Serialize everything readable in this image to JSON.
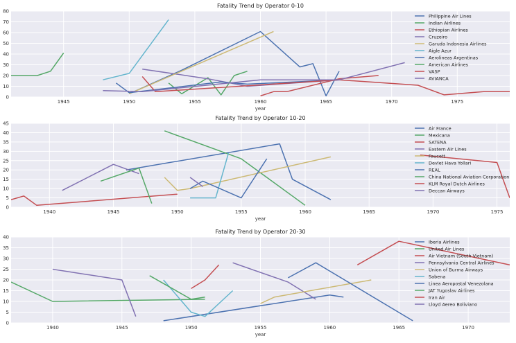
{
  "chart_data": [
    {
      "type": "line",
      "title": "Fatality Trend by Operator 0-10",
      "xlabel": "year",
      "ylabel": "",
      "xlim": [
        1941,
        1979
      ],
      "ylim": [
        0,
        80
      ],
      "xticks": [
        1945,
        1950,
        1955,
        1960,
        1965,
        1970,
        1975
      ],
      "yticks": [
        0,
        10,
        20,
        30,
        40,
        50,
        60,
        70,
        80
      ],
      "legend_position": "top-right",
      "series": [
        {
          "name": "Philippine Air Lines",
          "color": "#4c72b0",
          "points": [
            [
              1950,
              3
            ],
            [
              1954,
              25
            ],
            [
              1960,
              61
            ],
            [
              1963,
              28
            ],
            [
              1964,
              31
            ],
            [
              1965,
              1
            ],
            [
              1966,
              24
            ]
          ]
        },
        {
          "name": "Indian Airlines",
          "color": "#55a868",
          "points": [
            [
              1953,
              13
            ],
            [
              1954,
              3
            ],
            [
              1956,
              18
            ],
            [
              1957,
              2
            ],
            [
              1958,
              20
            ],
            [
              1959,
              24
            ]
          ]
        },
        {
          "name": "Ethiopian Airlines",
          "color": "#c44e52",
          "points": [
            [
              1960,
              1
            ],
            [
              1961,
              5
            ],
            [
              1962,
              5
            ],
            [
              1966,
              17
            ],
            [
              1969,
              20
            ]
          ]
        },
        {
          "name": "Cruzeiro",
          "color": "#8172b2",
          "points": [
            [
              1951,
              26
            ],
            [
              1956,
              17
            ],
            [
              1959,
              10
            ],
            [
              1966,
              16
            ]
          ]
        },
        {
          "name": "Garuda Indonesia Airlines",
          "color": "#ccb974",
          "points": [
            [
              1950,
              3
            ],
            [
              1961,
              61
            ]
          ]
        },
        {
          "name": "Aigle Azur",
          "color": "#64b5cd",
          "points": [
            [
              1948,
              16
            ],
            [
              1950,
              22
            ],
            [
              1953,
              72
            ]
          ]
        },
        {
          "name": "Aerolineas Argentinas",
          "color": "#4c72b0",
          "points": [
            [
              1949,
              13
            ],
            [
              1950,
              4
            ],
            [
              1957,
              14
            ],
            [
              1959,
              12
            ],
            [
              1966,
              16
            ]
          ]
        },
        {
          "name": "American Airlines",
          "color": "#55a868",
          "points": [
            [
              1941,
              20
            ],
            [
              1943,
              20
            ],
            [
              1944,
              24
            ],
            [
              1945,
              41
            ]
          ]
        },
        {
          "name": "VASP",
          "color": "#c44e52",
          "points": [
            [
              1951,
              19
            ],
            [
              1952,
              5
            ],
            [
              1966,
              16
            ],
            [
              1972,
              11
            ],
            [
              1974,
              2
            ],
            [
              1977,
              5
            ],
            [
              1979,
              5
            ]
          ]
        },
        {
          "name": "AVIANCA",
          "color": "#8172b2",
          "points": [
            [
              1948,
              6
            ],
            [
              1951,
              5
            ],
            [
              1960,
              16
            ],
            [
              1966,
              16
            ],
            [
              1971,
              32
            ]
          ]
        }
      ]
    },
    {
      "type": "line",
      "title": "Fatality Trend by Operator 10-20",
      "xlabel": "year",
      "ylabel": "",
      "xlim": [
        1937,
        1976
      ],
      "ylim": [
        0,
        45
      ],
      "xticks": [
        1940,
        1945,
        1950,
        1955,
        1960,
        1965,
        1970,
        1975
      ],
      "yticks": [
        0,
        5,
        10,
        15,
        20,
        25,
        30,
        35,
        40,
        45
      ],
      "legend_position": "top-right",
      "series": [
        {
          "name": "Air France",
          "color": "#4c72b0",
          "points": [
            [
              1946,
              20
            ],
            [
              1958,
              34
            ],
            [
              1959,
              15
            ],
            [
              1962,
              4
            ]
          ]
        },
        {
          "name": "Mexicana",
          "color": "#55a868",
          "points": [
            [
              1949,
              41
            ],
            [
              1955,
              26
            ],
            [
              1960,
              1
            ]
          ]
        },
        {
          "name": "SATENA",
          "color": "#c44e52",
          "points": [
            [
              1937,
              4
            ],
            [
              1938,
              6
            ],
            [
              1939,
              1
            ],
            [
              1950,
              7
            ]
          ]
        },
        {
          "name": "Eastern Air Lines",
          "color": "#8172b2",
          "points": [
            [
              1941,
              9
            ],
            [
              1945,
              23
            ],
            [
              1947,
              18
            ]
          ]
        },
        {
          "name": "Faucett",
          "color": "#ccb974",
          "points": [
            [
              1949,
              16
            ],
            [
              1950,
              9
            ],
            [
              1951,
              10
            ],
            [
              1962,
              27
            ]
          ]
        },
        {
          "name": "Devlet Hava Yollari",
          "color": "#64b5cd",
          "points": [
            [
              1951,
              5
            ],
            [
              1953,
              5
            ],
            [
              1954,
              29
            ]
          ]
        },
        {
          "name": "REAL",
          "color": "#4c72b0",
          "points": [
            [
              1951,
              10
            ],
            [
              1952,
              14
            ],
            [
              1955,
              5
            ],
            [
              1957,
              26
            ]
          ]
        },
        {
          "name": "China National Aviation Corporation",
          "color": "#55a868",
          "points": [
            [
              1944,
              14
            ],
            [
              1947,
              21
            ],
            [
              1948,
              2
            ]
          ]
        },
        {
          "name": "KLM Royal Dutch Airlines",
          "color": "#c44e52",
          "points": [
            [
              1969,
              28
            ],
            [
              1975,
              24
            ],
            [
              1976,
              5
            ]
          ]
        },
        {
          "name": "Deccan Airways",
          "color": "#8172b2",
          "points": [
            [
              1951,
              16
            ],
            [
              1952,
              11
            ]
          ]
        }
      ]
    },
    {
      "type": "line",
      "title": "Fatality Trend by Operator 20-30",
      "xlabel": "year",
      "ylabel": "",
      "xlim": [
        1937,
        1973
      ],
      "ylim": [
        0,
        40
      ],
      "xticks": [
        1940,
        1945,
        1950,
        1955,
        1960,
        1965,
        1970
      ],
      "yticks": [
        0,
        5,
        10,
        15,
        20,
        25,
        30,
        35,
        40
      ],
      "legend_position": "top-right",
      "series": [
        {
          "name": "Iberia Airlines",
          "color": "#4c72b0",
          "points": [
            [
              1948,
              1
            ],
            [
              1960,
              13
            ],
            [
              1961,
              12
            ]
          ]
        },
        {
          "name": "United Air Lines",
          "color": "#55a868",
          "points": [
            [
              1937,
              19
            ],
            [
              1940,
              10
            ],
            [
              1951,
              11
            ]
          ]
        },
        {
          "name": "Air Vietnam (South Vietnam)",
          "color": "#c44e52",
          "points": [
            [
              1962,
              27
            ],
            [
              1965,
              38
            ],
            [
              1973,
              27
            ]
          ]
        },
        {
          "name": "Pennsylvania Central Airlines",
          "color": "#8172b2",
          "points": [
            [
              1953,
              28
            ],
            [
              1957,
              19
            ],
            [
              1959,
              11
            ]
          ]
        },
        {
          "name": "Union of Burma Airways",
          "color": "#ccb974",
          "points": [
            [
              1955,
              9
            ],
            [
              1956,
              12
            ],
            [
              1963,
              20
            ]
          ]
        },
        {
          "name": "Sabena",
          "color": "#64b5cd",
          "points": [
            [
              1948,
              20
            ],
            [
              1950,
              5
            ],
            [
              1951,
              3
            ],
            [
              1953,
              15
            ]
          ]
        },
        {
          "name": "Linea Aeropostal Venezolana",
          "color": "#4c72b0",
          "points": [
            [
              1957,
              21
            ],
            [
              1959,
              28
            ],
            [
              1966,
              1
            ]
          ]
        },
        {
          "name": "JAT Yugoslav Airlines",
          "color": "#55a868",
          "points": [
            [
              1947,
              22
            ],
            [
              1950,
              11
            ],
            [
              1951,
              12
            ]
          ]
        },
        {
          "name": "Iran Air",
          "color": "#c44e52",
          "points": [
            [
              1950,
              16
            ],
            [
              1951,
              20
            ],
            [
              1952,
              27
            ]
          ]
        },
        {
          "name": "Lloyd Aereo Boliviano",
          "color": "#8172b2",
          "points": [
            [
              1940,
              25
            ],
            [
              1945,
              20
            ],
            [
              1946,
              3
            ]
          ]
        }
      ]
    }
  ]
}
